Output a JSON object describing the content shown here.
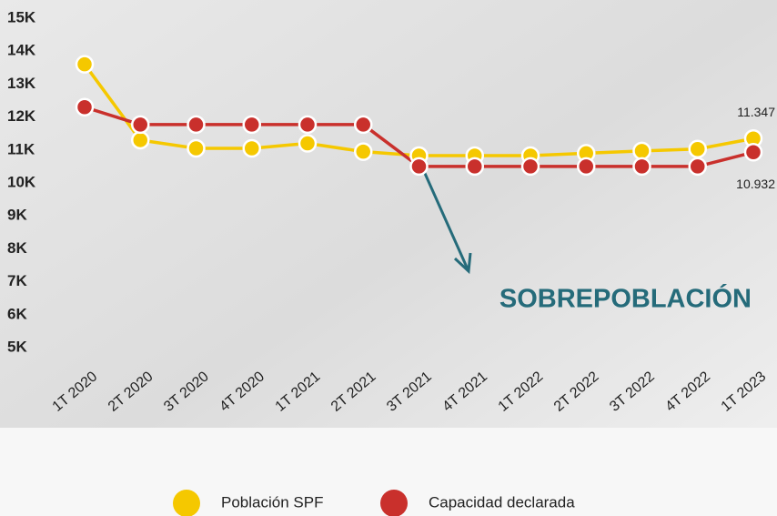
{
  "chart_data": {
    "type": "line",
    "categories": [
      "1T 2020",
      "2T 2020",
      "3T 2020",
      "4T 2020",
      "1T 2021",
      "2T 2021",
      "3T 2021",
      "4T 2021",
      "1T 2022",
      "2T 2022",
      "3T 2022",
      "4T 2022",
      "1T 2023"
    ],
    "series": [
      {
        "name": "Población SPF",
        "color": "#f5c800",
        "values": [
          13600,
          11300,
          11050,
          11050,
          11200,
          10950,
          10830,
          10830,
          10830,
          10900,
          10970,
          11030,
          11347
        ],
        "value_labels": [
          null,
          null,
          null,
          null,
          null,
          null,
          null,
          null,
          null,
          null,
          null,
          null,
          "11.347"
        ]
      },
      {
        "name": "Capacidad declarada",
        "color": "#c9302c",
        "values": [
          12300,
          11770,
          11770,
          11770,
          11770,
          11770,
          10500,
          10500,
          10500,
          10500,
          10500,
          10500,
          10932
        ],
        "value_labels": [
          null,
          null,
          null,
          null,
          null,
          null,
          null,
          null,
          null,
          null,
          null,
          null,
          "10.932"
        ]
      }
    ],
    "ylim": [
      5000,
      15000
    ],
    "yticks": [
      {
        "value": 5000,
        "label": "5K"
      },
      {
        "value": 6000,
        "label": "6K"
      },
      {
        "value": 7000,
        "label": "7K"
      },
      {
        "value": 8000,
        "label": "8K"
      },
      {
        "value": 9000,
        "label": "9K"
      },
      {
        "value": 10000,
        "label": "10K"
      },
      {
        "value": 11000,
        "label": "11K"
      },
      {
        "value": 12000,
        "label": "12K"
      },
      {
        "value": 13000,
        "label": "13K"
      },
      {
        "value": 14000,
        "label": "14K"
      },
      {
        "value": 15000,
        "label": "15K"
      }
    ],
    "annotation": "SOBREPOBLACIÓN"
  }
}
